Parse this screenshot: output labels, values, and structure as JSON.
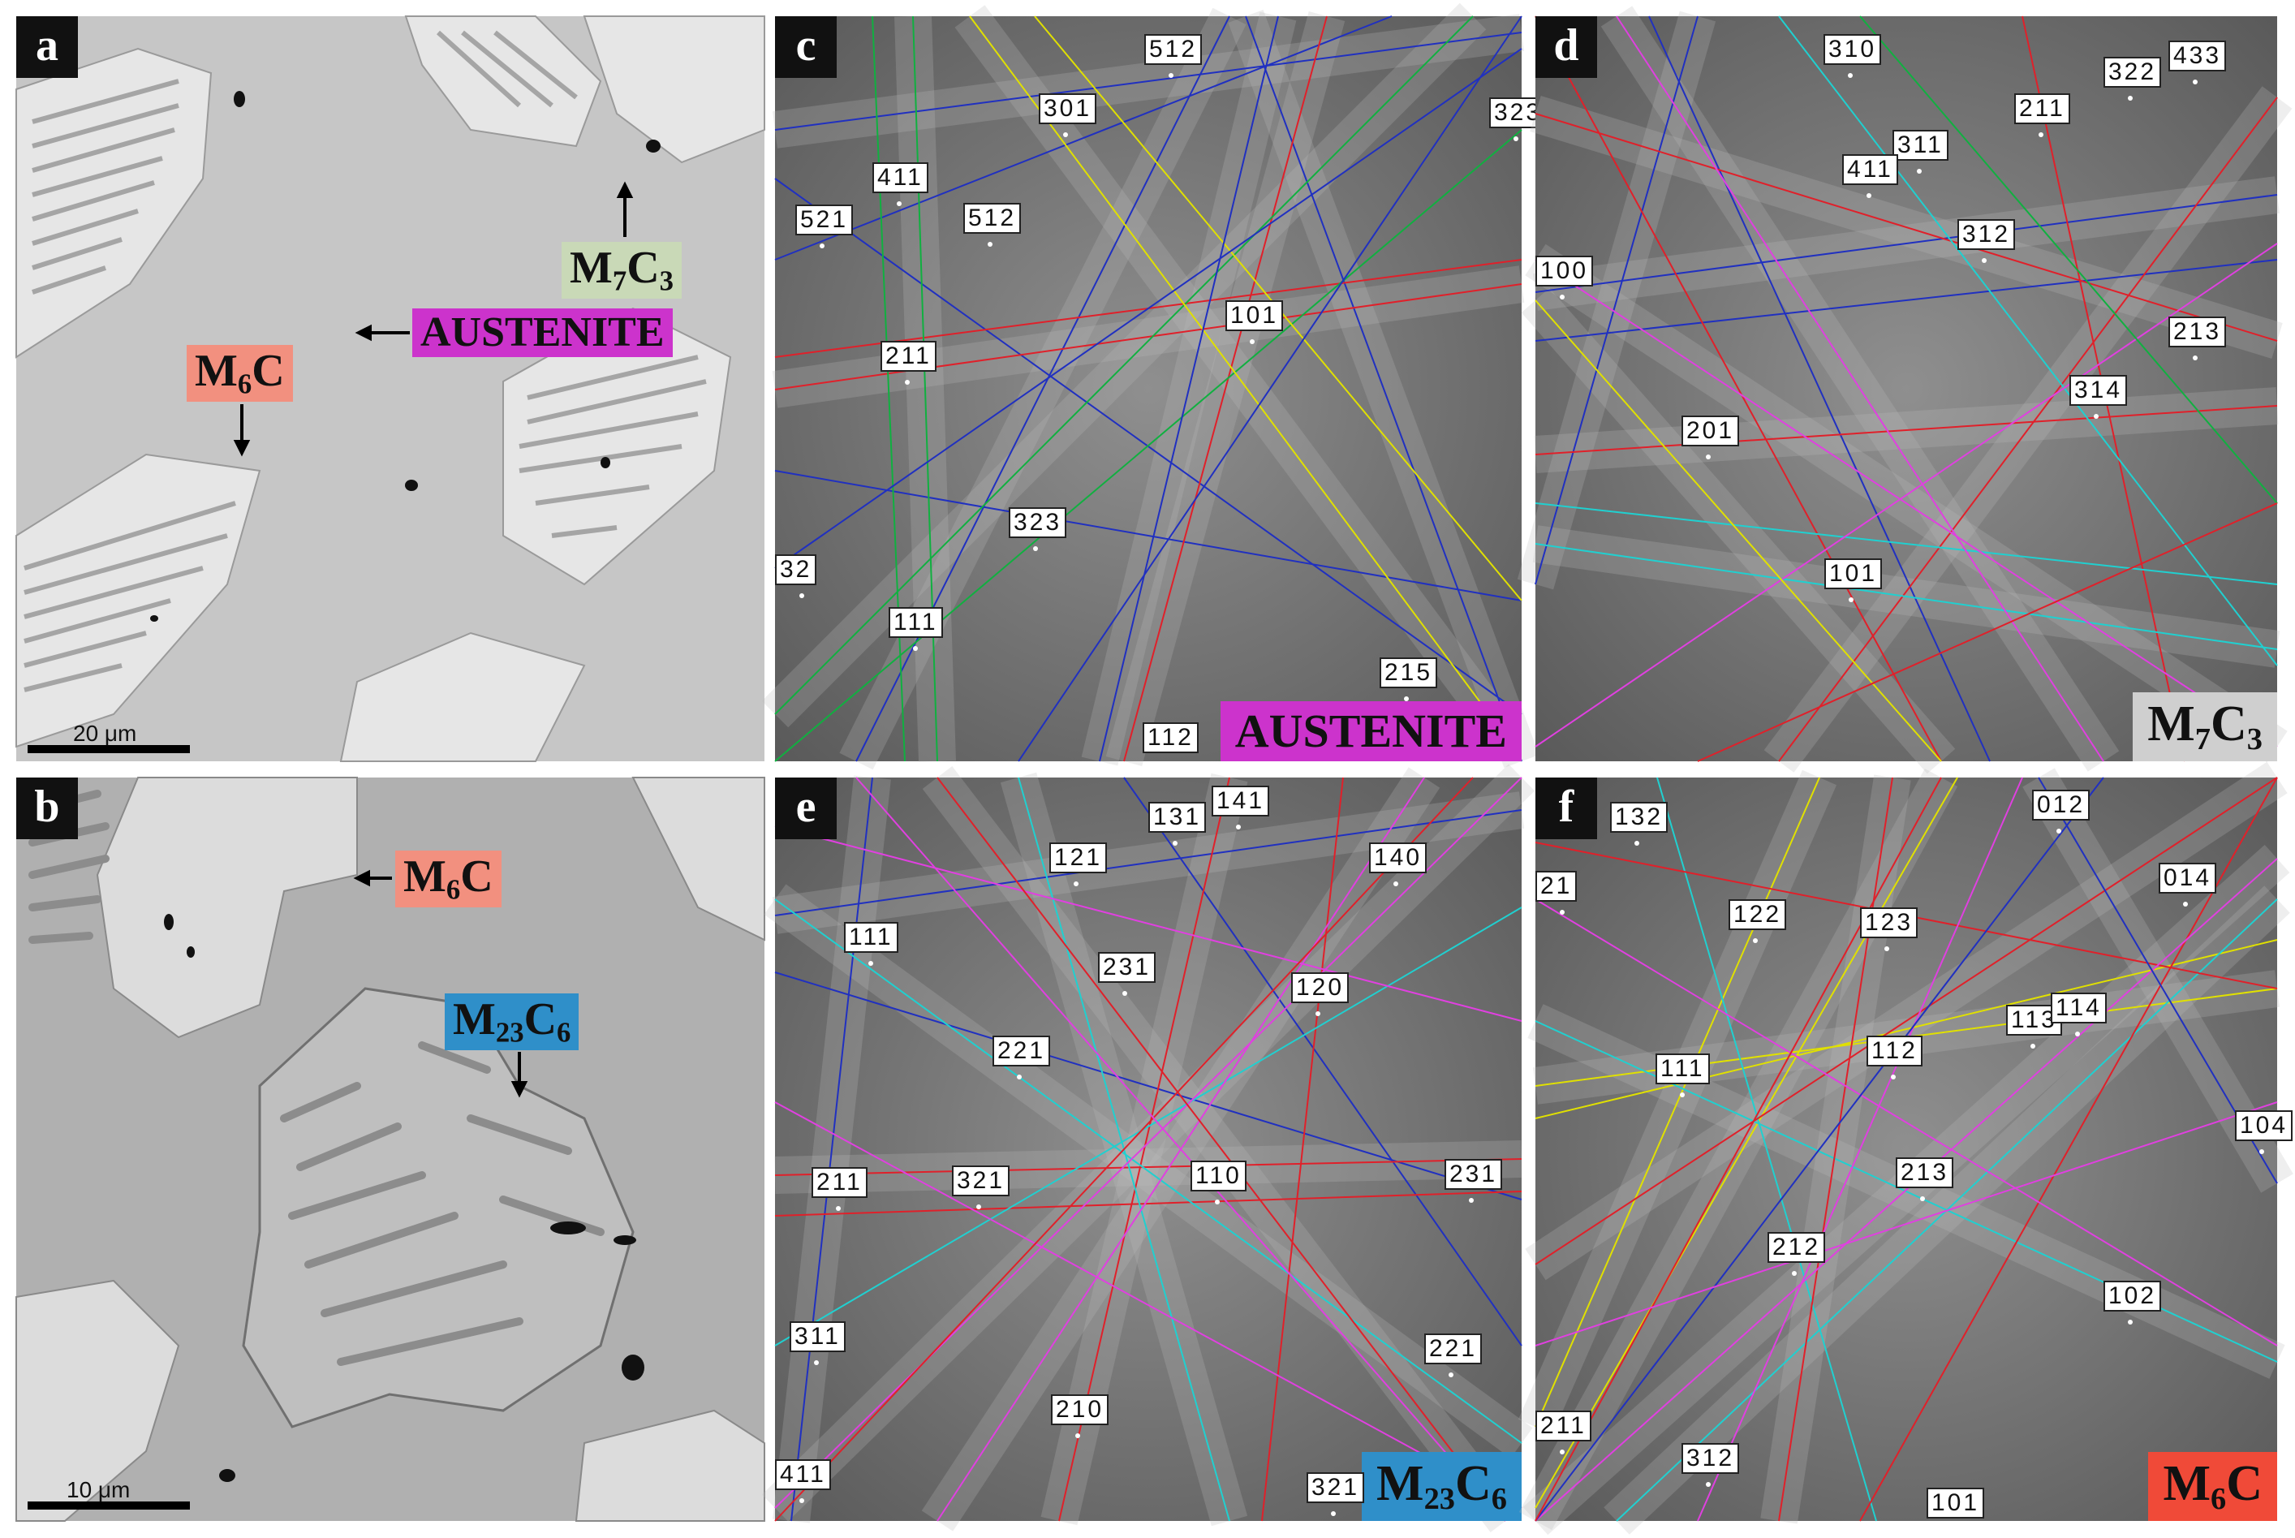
{
  "colors": {
    "austenite": "#cc33cc",
    "m7c3": "#c9d9b7",
    "m6c_sem": "#f2907f",
    "m6c_kik": "#f04a38",
    "m23c6": "#2f8fc9",
    "m7c3_box": "#cfcfcf",
    "band_red": "#e0202a",
    "band_blue": "#2030c0",
    "band_green": "#10b040",
    "band_yellow": "#e0e000",
    "band_cyan": "#20d0d0",
    "band_magenta": "#e040e0"
  },
  "panels": {
    "a": {
      "label": "a",
      "scale": "20 μm",
      "ann": {
        "m7c3_main": "M",
        "m7c3_s1": "7",
        "m7c3_c": "C",
        "m7c3_s2": "3",
        "aust": "AUSTENITE",
        "m6c_main": "M",
        "m6c_s": "6",
        "m6c_c": "C"
      }
    },
    "b": {
      "label": "b",
      "scale": "10 μm",
      "ann": {
        "m6c_main": "M",
        "m6c_s": "6",
        "m6c_c": "C",
        "m23_main": "M",
        "m23_s1": "23",
        "m23_c": "C",
        "m23_s2": "6"
      }
    },
    "c": {
      "label": "c",
      "phase": "AUSTENITE",
      "indices": [
        "512",
        "323",
        "301",
        "411",
        "512",
        "521",
        "101",
        "211",
        "323",
        "32",
        "111",
        "215",
        "112"
      ]
    },
    "d": {
      "label": "d",
      "phase_main": "M",
      "phase_s1": "7",
      "phase_c": "C",
      "phase_s2": "3",
      "indices": [
        "310",
        "322",
        "433",
        "211",
        "311",
        "411",
        "312",
        "100",
        "213",
        "314",
        "201",
        "101"
      ]
    },
    "e": {
      "label": "e",
      "phase_main": "M",
      "phase_s1": "23",
      "phase_c": "C",
      "phase_s2": "6",
      "indices": [
        "141",
        "131",
        "121",
        "140",
        "111",
        "231",
        "120",
        "221",
        "110",
        "211",
        "321",
        "231",
        "311",
        "221",
        "210",
        "411",
        "321"
      ]
    },
    "f": {
      "label": "f",
      "phase_main": "M",
      "phase_s": "6",
      "phase_c": "C",
      "indices": [
        "132",
        "012",
        "21",
        "122",
        "123",
        "014",
        "113",
        "114",
        "112",
        "111",
        "104",
        "213",
        "212",
        "102",
        "211",
        "312",
        "101"
      ]
    }
  }
}
